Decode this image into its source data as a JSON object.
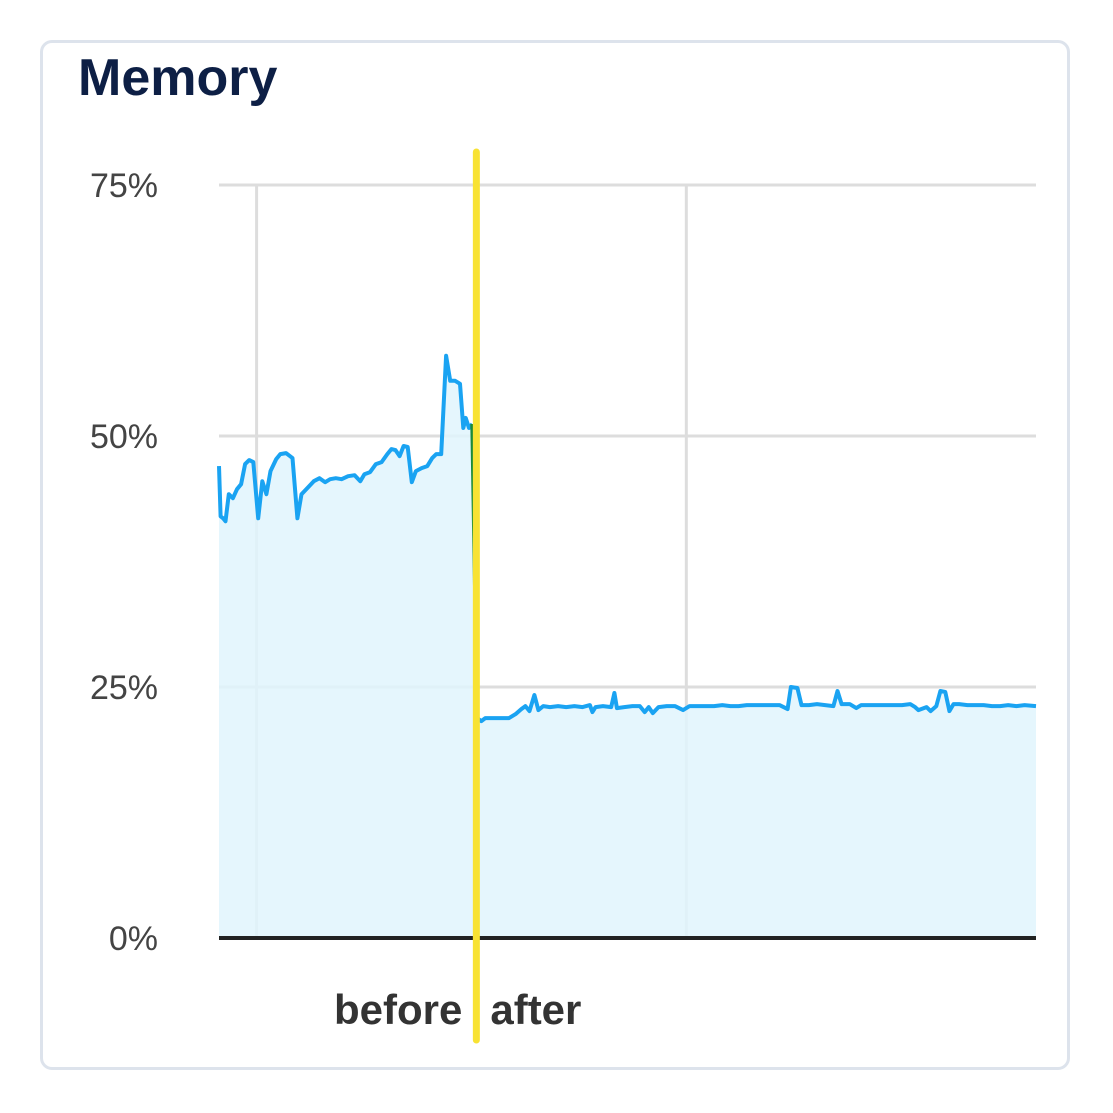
{
  "title": "Memory",
  "chart_data": {
    "type": "area",
    "ylim": [
      0,
      75
    ],
    "xlim": [
      0,
      100
    ],
    "yticks": [
      {
        "value": 75,
        "label": "75%"
      },
      {
        "value": 50,
        "label": "50%"
      },
      {
        "value": 25,
        "label": "25%"
      },
      {
        "value": 0,
        "label": "0%"
      }
    ],
    "vgrid": [
      4.6,
      57.2
    ],
    "divider_x": 31.5,
    "annotations": {
      "before": "before",
      "after": "after"
    },
    "colors": {
      "line": "#1aa3f2",
      "fill": "#e1f4fd",
      "transition": "#1a8a3a",
      "divider": "#f8e233",
      "grid": "#dddddd",
      "axis": "#222222"
    },
    "series": [
      {
        "values_before": [
          [
            0,
            47
          ],
          [
            0.2,
            42
          ],
          [
            0.5,
            41.8
          ],
          [
            0.8,
            41.5
          ],
          [
            1.2,
            44.2
          ],
          [
            1.7,
            43.8
          ],
          [
            2.2,
            44.7
          ],
          [
            2.7,
            45.2
          ],
          [
            3.2,
            47.2
          ],
          [
            3.7,
            47.6
          ],
          [
            4.2,
            47.4
          ],
          [
            4.8,
            41.8
          ],
          [
            5.3,
            45.5
          ],
          [
            5.8,
            44.2
          ],
          [
            6.3,
            46.5
          ],
          [
            7.0,
            47.7
          ],
          [
            7.5,
            48.2
          ],
          [
            8.2,
            48.3
          ],
          [
            9.0,
            47.8
          ],
          [
            9.6,
            41.8
          ],
          [
            10.1,
            44.2
          ],
          [
            10.8,
            44.8
          ],
          [
            11.6,
            45.5
          ],
          [
            12.3,
            45.8
          ],
          [
            13.0,
            45.4
          ],
          [
            13.6,
            45.7
          ],
          [
            14.3,
            45.8
          ],
          [
            15.0,
            45.7
          ],
          [
            15.8,
            46.0
          ],
          [
            16.6,
            46.1
          ],
          [
            17.3,
            45.5
          ],
          [
            17.8,
            46.2
          ],
          [
            18.5,
            46.4
          ],
          [
            19.2,
            47.2
          ],
          [
            19.9,
            47.4
          ],
          [
            20.6,
            48.2
          ],
          [
            21.1,
            48.7
          ],
          [
            21.6,
            48.6
          ],
          [
            22.1,
            48.0
          ],
          [
            22.6,
            49.0
          ],
          [
            23.1,
            48.9
          ],
          [
            23.6,
            45.4
          ],
          [
            24.1,
            46.5
          ],
          [
            24.8,
            46.8
          ],
          [
            25.5,
            47.0
          ],
          [
            26.1,
            47.8
          ],
          [
            26.6,
            48.2
          ],
          [
            27.2,
            48.2
          ],
          [
            27.8,
            58.0
          ],
          [
            28.3,
            55.5
          ],
          [
            28.9,
            55.5
          ],
          [
            29.5,
            55.2
          ],
          [
            29.9,
            50.8
          ],
          [
            30.2,
            51.8
          ],
          [
            30.6,
            50.8
          ],
          [
            31.0,
            51.2
          ]
        ],
        "values_transition": [
          [
            31.0,
            51.2
          ],
          [
            31.6,
            21.9
          ]
        ],
        "values_after": [
          [
            31.6,
            21.9
          ],
          [
            32.1,
            21.6
          ],
          [
            32.6,
            21.9
          ],
          [
            33.5,
            21.9
          ],
          [
            34.5,
            21.9
          ],
          [
            35.5,
            21.9
          ],
          [
            36.3,
            22.3
          ],
          [
            37.0,
            22.8
          ],
          [
            37.5,
            23.1
          ],
          [
            38.0,
            22.6
          ],
          [
            38.6,
            24.2
          ],
          [
            39.1,
            22.7
          ],
          [
            39.7,
            23.1
          ],
          [
            40.5,
            23.0
          ],
          [
            41.5,
            23.1
          ],
          [
            42.5,
            23.0
          ],
          [
            43.5,
            23.1
          ],
          [
            44.5,
            23.0
          ],
          [
            45.4,
            23.2
          ],
          [
            45.7,
            22.5
          ],
          [
            46.1,
            23.0
          ],
          [
            47.0,
            23.1
          ],
          [
            48.0,
            23.0
          ],
          [
            48.4,
            24.4
          ],
          [
            48.7,
            22.9
          ],
          [
            49.6,
            23.0
          ],
          [
            50.6,
            23.1
          ],
          [
            51.5,
            23.1
          ],
          [
            52.1,
            22.5
          ],
          [
            52.6,
            23.0
          ],
          [
            53.1,
            22.4
          ],
          [
            53.8,
            23.0
          ],
          [
            54.8,
            23.1
          ],
          [
            55.8,
            23.1
          ],
          [
            56.8,
            22.7
          ],
          [
            57.6,
            23.1
          ],
          [
            58.6,
            23.1
          ],
          [
            59.6,
            23.1
          ],
          [
            60.6,
            23.1
          ],
          [
            61.6,
            23.2
          ],
          [
            62.6,
            23.1
          ],
          [
            63.6,
            23.1
          ],
          [
            64.6,
            23.2
          ],
          [
            65.6,
            23.2
          ],
          [
            66.6,
            23.2
          ],
          [
            67.6,
            23.2
          ],
          [
            68.6,
            23.2
          ],
          [
            69.6,
            22.8
          ],
          [
            70.0,
            25.0
          ],
          [
            70.8,
            24.9
          ],
          [
            71.3,
            23.2
          ],
          [
            72.2,
            23.2
          ],
          [
            73.2,
            23.3
          ],
          [
            74.2,
            23.2
          ],
          [
            75.2,
            23.1
          ],
          [
            75.7,
            24.6
          ],
          [
            76.2,
            23.3
          ],
          [
            77.2,
            23.3
          ],
          [
            78.0,
            22.9
          ],
          [
            78.6,
            23.2
          ],
          [
            79.6,
            23.2
          ],
          [
            80.6,
            23.2
          ],
          [
            81.6,
            23.2
          ],
          [
            82.6,
            23.2
          ],
          [
            83.6,
            23.2
          ],
          [
            84.6,
            23.3
          ],
          [
            85.2,
            23.0
          ],
          [
            85.6,
            22.7
          ],
          [
            86.6,
            23.0
          ],
          [
            87.1,
            22.6
          ],
          [
            87.8,
            23.1
          ],
          [
            88.3,
            24.6
          ],
          [
            88.9,
            24.5
          ],
          [
            89.4,
            22.6
          ],
          [
            89.9,
            23.3
          ],
          [
            90.6,
            23.3
          ],
          [
            91.6,
            23.2
          ],
          [
            92.6,
            23.2
          ],
          [
            93.6,
            23.2
          ],
          [
            94.6,
            23.1
          ],
          [
            95.6,
            23.1
          ],
          [
            96.6,
            23.2
          ],
          [
            97.6,
            23.1
          ],
          [
            98.6,
            23.2
          ],
          [
            100.0,
            23.1
          ]
        ]
      }
    ]
  }
}
